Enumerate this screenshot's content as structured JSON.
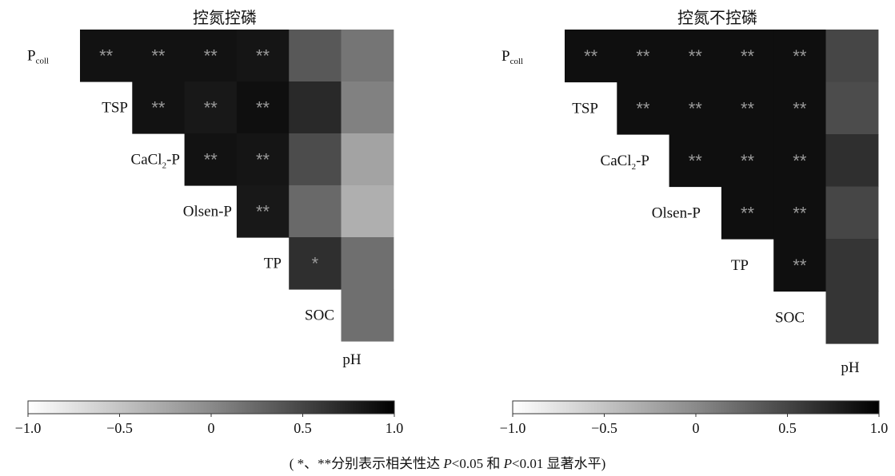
{
  "charts": [
    {
      "title": "控氮控磷",
      "row_labels": [
        "P",
        "TSP",
        "CaCl",
        "Olsen-P",
        "TP",
        "SOC",
        "pH"
      ],
      "p_coll_subscript": "coll",
      "cacl_subscript": "2",
      "cacl_suffix": "-P"
    },
    {
      "title": "控氮不控磷",
      "row_labels": [
        "P",
        "TSP",
        "CaCl",
        "Olsen-P",
        "TP",
        "SOC",
        "pH"
      ],
      "p_coll_subscript": "coll",
      "cacl_subscript": "2",
      "cacl_suffix": "-P"
    }
  ],
  "colorbar": {
    "ticks": [
      "−1.0",
      "−0.5",
      "0",
      "0.5",
      "1.0"
    ],
    "min_color": "#ffffff",
    "max_color": "#000000"
  },
  "caption": {
    "open": "( *、**分别表示相关性达 ",
    "p1": "P",
    "t1": "<0.05 和 ",
    "p2": "P",
    "t2": "<0.01 显著水平)"
  },
  "chart_data": [
    {
      "type": "heatmap",
      "title": "控氮控磷",
      "variables": [
        "Pcoll",
        "TSP",
        "CaCl2-P",
        "Olsen-P",
        "TP",
        "SOC",
        "pH"
      ],
      "colorbar_range": [
        -1.0,
        1.0
      ],
      "cells": [
        {
          "row": "Pcoll",
          "col": "TSP",
          "r": 0.95,
          "sig": "**"
        },
        {
          "row": "Pcoll",
          "col": "CaCl2-P",
          "r": 0.95,
          "sig": "**"
        },
        {
          "row": "Pcoll",
          "col": "Olsen-P",
          "r": 0.95,
          "sig": "**"
        },
        {
          "row": "Pcoll",
          "col": "TP",
          "r": 0.92,
          "sig": "**"
        },
        {
          "row": "Pcoll",
          "col": "SOC",
          "r": 0.35,
          "sig": ""
        },
        {
          "row": "Pcoll",
          "col": "pH",
          "r": 0.1,
          "sig": ""
        },
        {
          "row": "TSP",
          "col": "CaCl2-P",
          "r": 0.95,
          "sig": "**"
        },
        {
          "row": "TSP",
          "col": "Olsen-P",
          "r": 0.9,
          "sig": "**"
        },
        {
          "row": "TSP",
          "col": "TP",
          "r": 0.97,
          "sig": "**"
        },
        {
          "row": "TSP",
          "col": "SOC",
          "r": 0.75,
          "sig": ""
        },
        {
          "row": "TSP",
          "col": "pH",
          "r": 0.0,
          "sig": ""
        },
        {
          "row": "CaCl2-P",
          "col": "Olsen-P",
          "r": 0.95,
          "sig": "**"
        },
        {
          "row": "CaCl2-P",
          "col": "TP",
          "r": 0.92,
          "sig": "**"
        },
        {
          "row": "CaCl2-P",
          "col": "SOC",
          "r": 0.45,
          "sig": ""
        },
        {
          "row": "CaCl2-P",
          "col": "pH",
          "r": -0.3,
          "sig": ""
        },
        {
          "row": "Olsen-P",
          "col": "TP",
          "r": 0.9,
          "sig": "**"
        },
        {
          "row": "Olsen-P",
          "col": "SOC",
          "r": 0.2,
          "sig": ""
        },
        {
          "row": "Olsen-P",
          "col": "pH",
          "r": -0.4,
          "sig": ""
        },
        {
          "row": "TP",
          "col": "SOC",
          "r": 0.7,
          "sig": "*"
        },
        {
          "row": "TP",
          "col": "pH",
          "r": 0.15,
          "sig": ""
        },
        {
          "row": "SOC",
          "col": "pH",
          "r": 0.15,
          "sig": ""
        }
      ]
    },
    {
      "type": "heatmap",
      "title": "控氮不控磷",
      "variables": [
        "Pcoll",
        "TSP",
        "CaCl2-P",
        "Olsen-P",
        "TP",
        "SOC",
        "pH"
      ],
      "colorbar_range": [
        -1.0,
        1.0
      ],
      "cells": [
        {
          "row": "Pcoll",
          "col": "TSP",
          "r": 0.97,
          "sig": "**"
        },
        {
          "row": "Pcoll",
          "col": "CaCl2-P",
          "r": 0.97,
          "sig": "**"
        },
        {
          "row": "Pcoll",
          "col": "Olsen-P",
          "r": 0.97,
          "sig": "**"
        },
        {
          "row": "Pcoll",
          "col": "TP",
          "r": 0.97,
          "sig": "**"
        },
        {
          "row": "Pcoll",
          "col": "SOC",
          "r": 0.97,
          "sig": "**"
        },
        {
          "row": "Pcoll",
          "col": "pH",
          "r": 0.5,
          "sig": ""
        },
        {
          "row": "TSP",
          "col": "CaCl2-P",
          "r": 0.97,
          "sig": "**"
        },
        {
          "row": "TSP",
          "col": "Olsen-P",
          "r": 0.97,
          "sig": "**"
        },
        {
          "row": "TSP",
          "col": "TP",
          "r": 0.97,
          "sig": "**"
        },
        {
          "row": "TSP",
          "col": "SOC",
          "r": 0.97,
          "sig": "**"
        },
        {
          "row": "TSP",
          "col": "pH",
          "r": 0.45,
          "sig": ""
        },
        {
          "row": "CaCl2-P",
          "col": "Olsen-P",
          "r": 0.97,
          "sig": "**"
        },
        {
          "row": "CaCl2-P",
          "col": "TP",
          "r": 0.97,
          "sig": "**"
        },
        {
          "row": "CaCl2-P",
          "col": "SOC",
          "r": 0.97,
          "sig": "**"
        },
        {
          "row": "CaCl2-P",
          "col": "pH",
          "r": 0.7,
          "sig": ""
        },
        {
          "row": "Olsen-P",
          "col": "TP",
          "r": 0.97,
          "sig": "**"
        },
        {
          "row": "Olsen-P",
          "col": "SOC",
          "r": 0.97,
          "sig": "**"
        },
        {
          "row": "Olsen-P",
          "col": "pH",
          "r": 0.5,
          "sig": ""
        },
        {
          "row": "TP",
          "col": "SOC",
          "r": 0.97,
          "sig": "**"
        },
        {
          "row": "TP",
          "col": "pH",
          "r": 0.65,
          "sig": ""
        },
        {
          "row": "SOC",
          "col": "pH",
          "r": 0.65,
          "sig": ""
        }
      ]
    }
  ]
}
